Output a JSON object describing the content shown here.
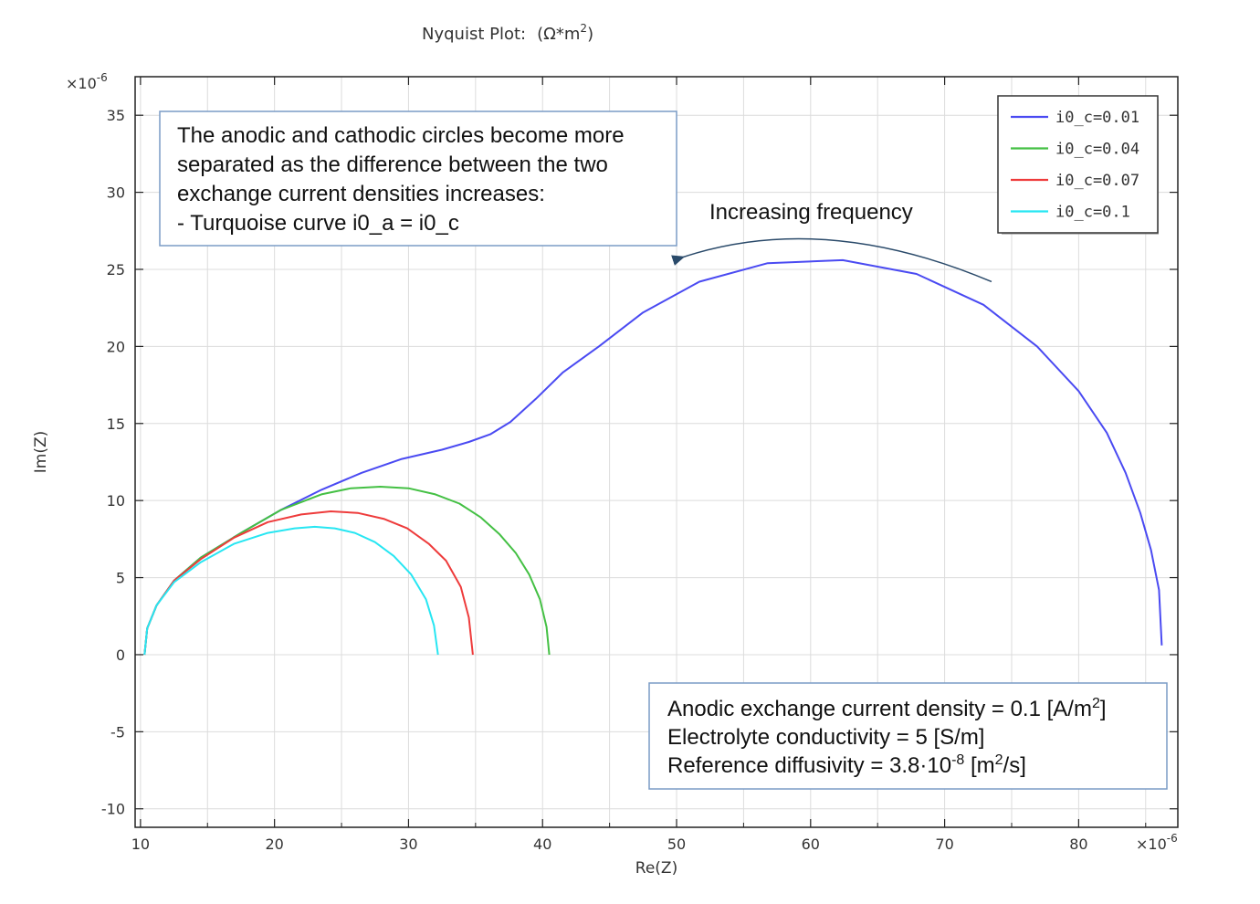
{
  "chart_data": {
    "type": "line",
    "title": "Nyquist Plot:",
    "title_unit_base": "(Ω*m",
    "title_unit_sup": "2",
    "title_unit_end": ")",
    "xlabel": "Re(Z)",
    "ylabel": "Im(Z)",
    "x_scale_base": "×10",
    "x_scale_exp": "-6",
    "y_scale_base": "×10",
    "y_scale_exp": "-6",
    "xlim": [
      9.6,
      87.4
    ],
    "ylim": [
      -11.2,
      37.5
    ],
    "xticks": [
      10,
      20,
      30,
      40,
      50,
      60,
      70,
      80
    ],
    "yticks": [
      -10,
      -5,
      0,
      5,
      10,
      15,
      20,
      25,
      30,
      35
    ],
    "x_minor_grid_step": 5,
    "grid": true,
    "legend_position": "top-right",
    "series": [
      {
        "name": "i0_c=0.01",
        "color": "#4a4af2",
        "x": [
          10.3,
          10.5,
          11.2,
          12.5,
          14.5,
          17.5,
          20.5,
          23.5,
          26.5,
          29.5,
          32.5,
          34.5,
          36.1,
          37.6,
          39.5,
          41.5,
          44.2,
          47.5,
          51.7,
          56.8,
          62.4,
          67.9,
          72.9,
          76.9,
          80.0,
          82.1,
          83.5,
          84.6,
          85.4,
          86.0,
          86.2
        ],
        "y": [
          0.0,
          1.7,
          3.2,
          4.8,
          6.3,
          7.9,
          9.4,
          10.7,
          11.8,
          12.7,
          13.3,
          13.8,
          14.3,
          15.1,
          16.6,
          18.3,
          20.0,
          22.2,
          24.2,
          25.4,
          25.6,
          24.7,
          22.7,
          20.0,
          17.1,
          14.4,
          11.8,
          9.2,
          6.8,
          4.2,
          0.6
        ]
      },
      {
        "name": "i0_c=0.04",
        "color": "#44c044",
        "x": [
          10.3,
          10.5,
          11.2,
          12.5,
          14.5,
          17.5,
          20.5,
          23.5,
          25.7,
          27.9,
          30.0,
          32.0,
          33.8,
          35.4,
          36.8,
          38.0,
          39.0,
          39.8,
          40.3,
          40.5
        ],
        "y": [
          0.0,
          1.7,
          3.2,
          4.8,
          6.3,
          7.9,
          9.4,
          10.4,
          10.8,
          10.9,
          10.8,
          10.4,
          9.8,
          8.9,
          7.8,
          6.6,
          5.2,
          3.6,
          1.8,
          0.0
        ]
      },
      {
        "name": "i0_c=0.07",
        "color": "#ee3b3b",
        "x": [
          10.3,
          10.5,
          11.2,
          12.5,
          14.5,
          17.0,
          19.5,
          22.0,
          24.2,
          26.2,
          28.2,
          29.9,
          31.5,
          32.8,
          33.9,
          34.5,
          34.8
        ],
        "y": [
          0.0,
          1.7,
          3.2,
          4.8,
          6.2,
          7.6,
          8.6,
          9.1,
          9.3,
          9.2,
          8.8,
          8.2,
          7.2,
          6.1,
          4.4,
          2.4,
          0.0
        ]
      },
      {
        "name": "i0_c=0.1",
        "color": "#27e6f2",
        "x": [
          10.3,
          10.5,
          11.2,
          12.5,
          14.5,
          17.0,
          19.5,
          21.5,
          23.0,
          24.5,
          26.0,
          27.5,
          28.9,
          30.2,
          31.3,
          31.9,
          32.2
        ],
        "y": [
          0.0,
          1.7,
          3.2,
          4.7,
          6.0,
          7.2,
          7.9,
          8.2,
          8.3,
          8.2,
          7.9,
          7.3,
          6.4,
          5.2,
          3.6,
          1.9,
          0.0
        ]
      }
    ],
    "arrow": {
      "label": "Increasing frequency",
      "color": "#2a4a6a",
      "from": [
        73.5,
        24.2
      ],
      "via": [
        61.0,
        28.8
      ],
      "to": [
        50.5,
        25.8
      ]
    }
  },
  "annotations": {
    "top_note": {
      "lines": [
        "The anodic and cathodic circles become more",
        "separated as the difference between the two",
        "exchange current densities increases:",
        "- Turquoise curve i0_a = i0_c"
      ]
    },
    "bottom_note": {
      "line1_main": "Anodic exchange current density = 0.1 [A/m",
      "line1_sup": "2",
      "line1_end": "]",
      "line2": "Electrolyte conductivity = 5 [S/m]",
      "line3_main": "Reference diffusivity = 3.8·10",
      "line3_sup": "-8",
      "line3_mid": " [m",
      "line3_sup2": "2",
      "line3_end": "/s]"
    }
  }
}
